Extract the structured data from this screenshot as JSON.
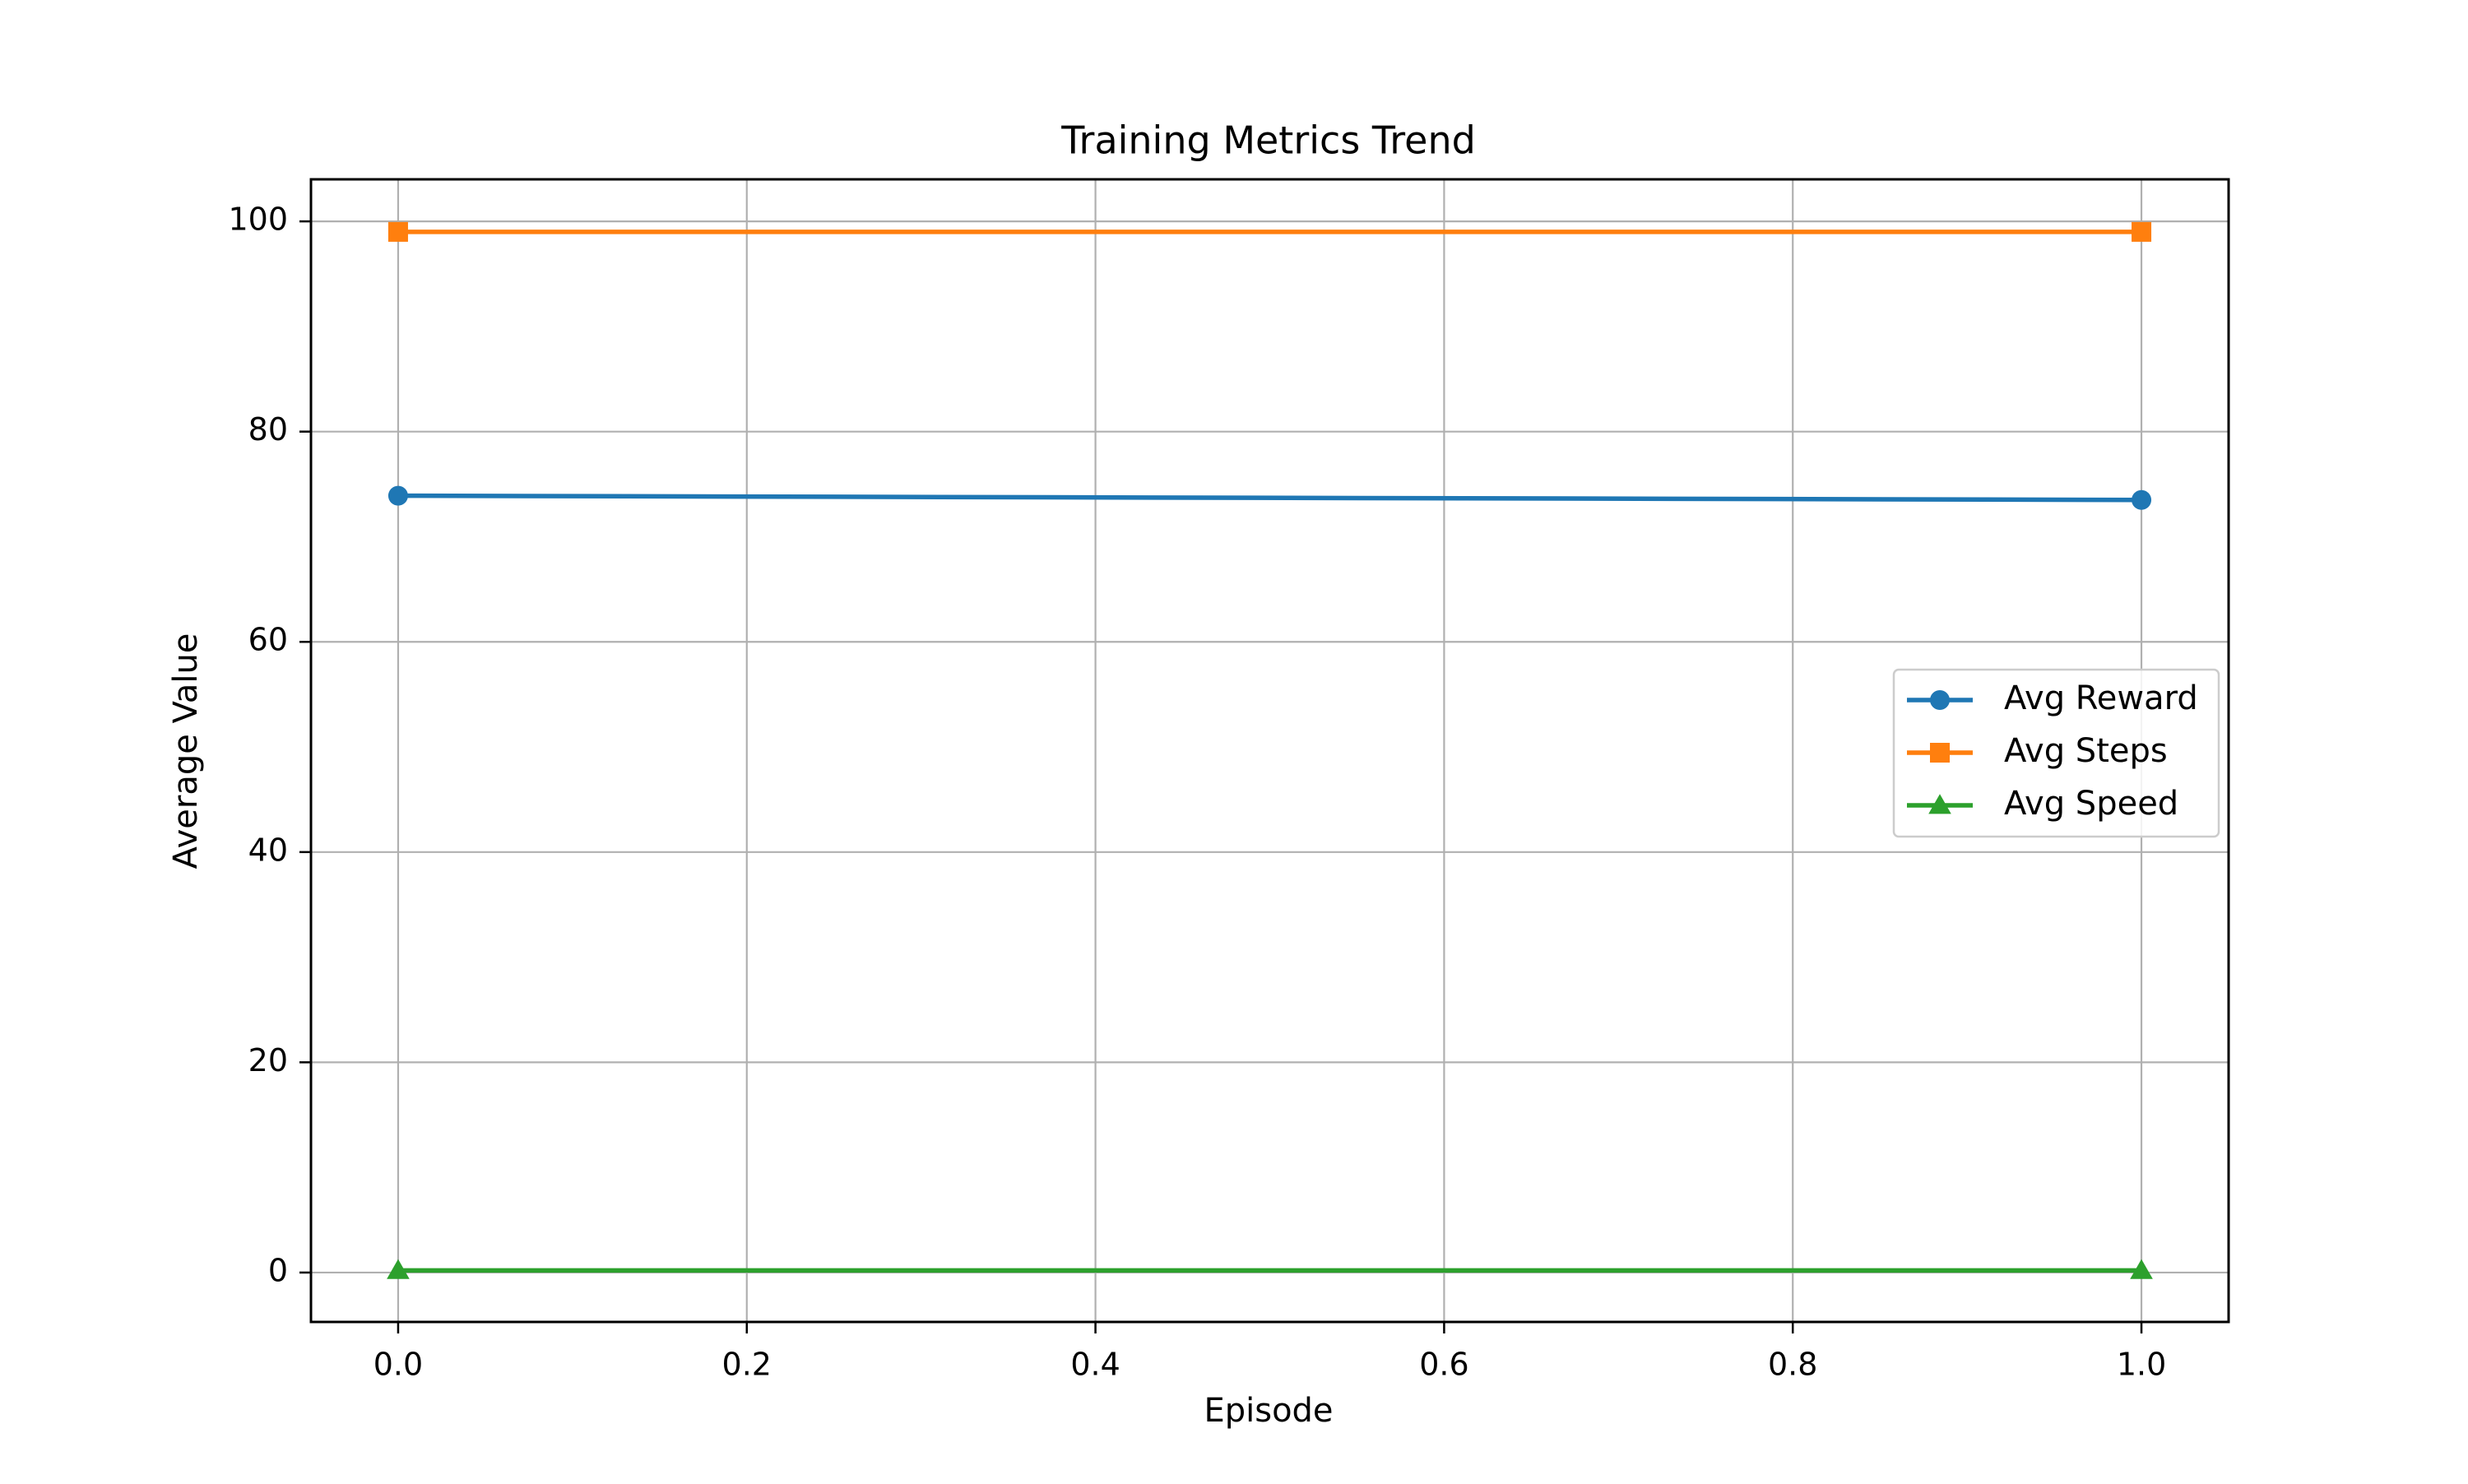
{
  "chart_data": {
    "type": "line",
    "title": "Training Metrics Trend",
    "xlabel": "Episode",
    "ylabel": "Average Value",
    "xlim": [
      -0.05,
      1.05
    ],
    "ylim": [
      -4.7,
      104
    ],
    "x_ticks": [
      0.0,
      0.2,
      0.4,
      0.6,
      0.8,
      1.0
    ],
    "x_tick_labels": [
      "0.0",
      "0.2",
      "0.4",
      "0.6",
      "0.8",
      "1.0"
    ],
    "y_ticks": [
      0,
      20,
      40,
      60,
      80,
      100
    ],
    "y_tick_labels": [
      "0",
      "20",
      "40",
      "60",
      "80",
      "100"
    ],
    "grid": true,
    "legend_position": "center-right",
    "x": [
      0.0,
      1.0
    ],
    "series": [
      {
        "name": "Avg Reward",
        "values": [
          73.9,
          73.5
        ],
        "color": "#1f77b4",
        "marker": "circle"
      },
      {
        "name": "Avg Steps",
        "values": [
          99.0,
          99.0
        ],
        "color": "#ff7f0e",
        "marker": "square"
      },
      {
        "name": "Avg Speed",
        "values": [
          0.2,
          0.2
        ],
        "color": "#2ca02c",
        "marker": "triangle"
      }
    ]
  }
}
